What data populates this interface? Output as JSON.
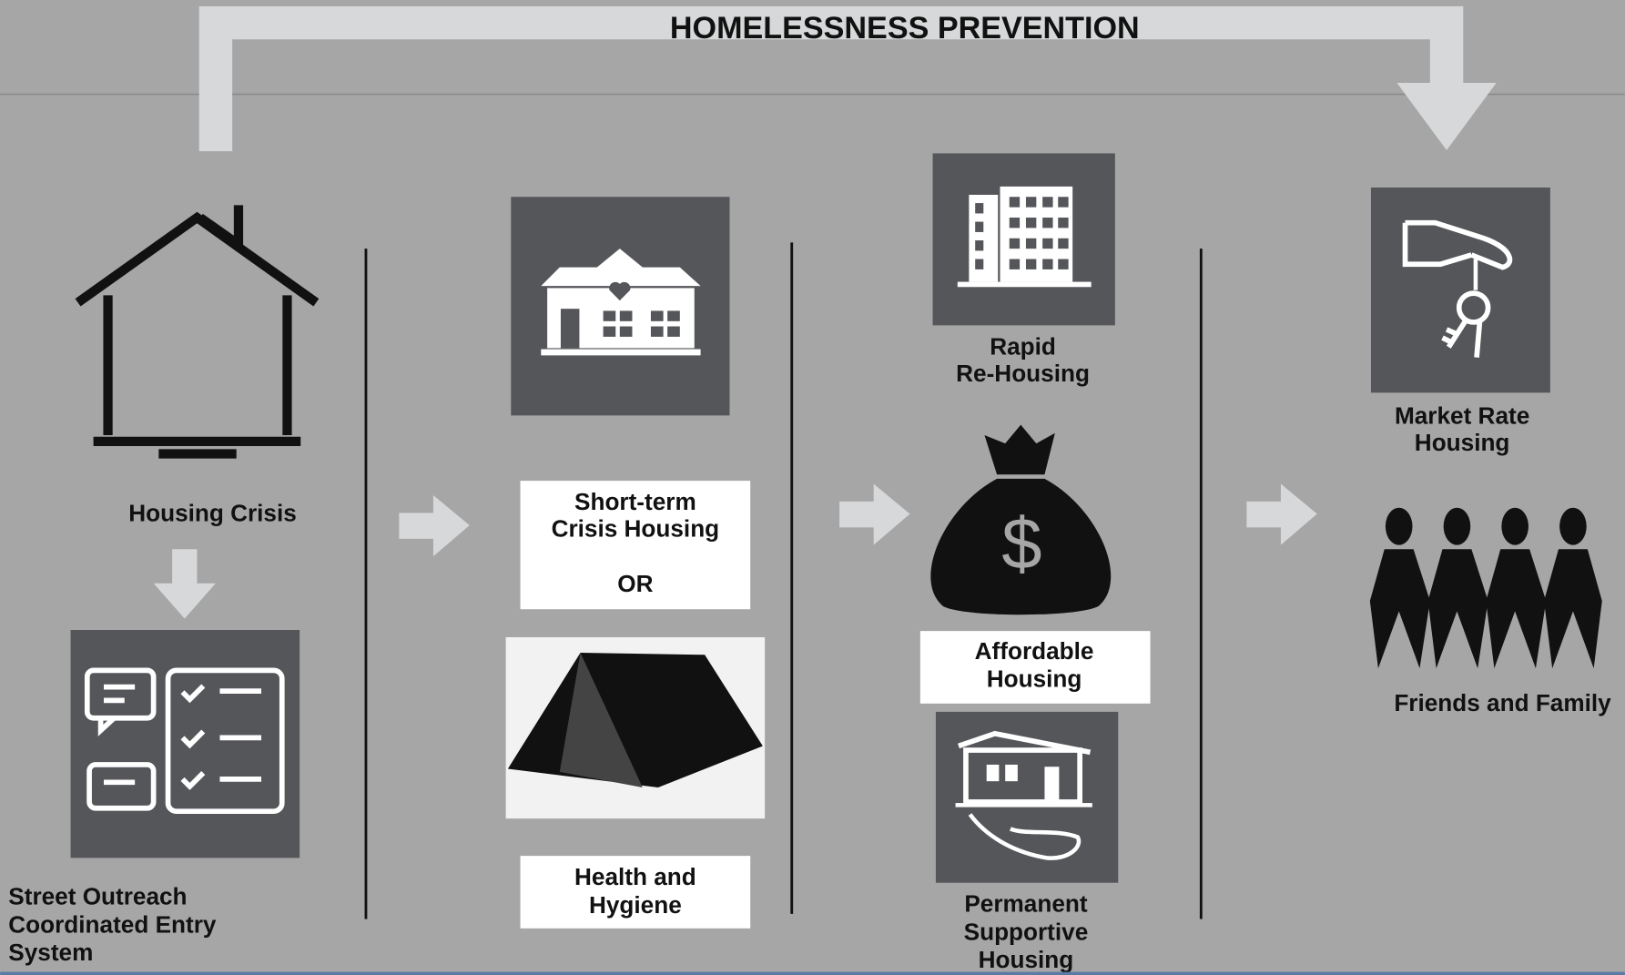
{
  "title": "HOMELESSNESS PREVENTION",
  "nodes": [
    {
      "lines": [
        "Housing Crisis"
      ]
    },
    {
      "lines": [
        "Street Outreach",
        "Coordinated Entry",
        "System"
      ]
    },
    {
      "lines": [
        "Short-term",
        "Crisis Housing",
        "OR"
      ]
    },
    {
      "lines": [
        "Health and",
        "Hygiene"
      ]
    },
    {
      "lines": [
        "Rapid",
        "Re-Housing"
      ]
    },
    {
      "lines": [
        "Affordable",
        "Housing"
      ]
    },
    {
      "lines": [
        "Permanent",
        "Supportive",
        "Housing"
      ]
    },
    {
      "lines": [
        "Market Rate",
        "Housing"
      ]
    },
    {
      "lines": [
        "Friends and Family"
      ]
    }
  ]
}
